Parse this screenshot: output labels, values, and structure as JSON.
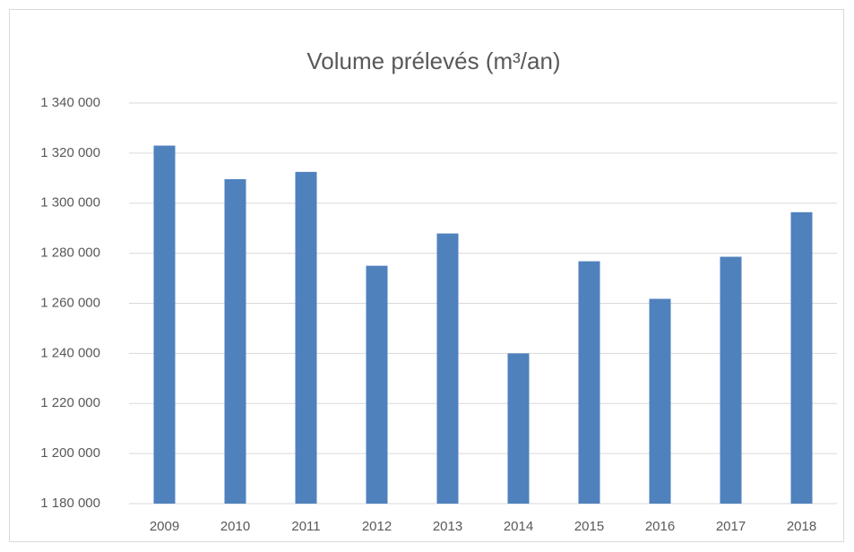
{
  "chart_data": {
    "type": "bar",
    "title": "Volume prélevés (m³/an)",
    "categories": [
      "2009",
      "2010",
      "2011",
      "2012",
      "2013",
      "2014",
      "2015",
      "2016",
      "2017",
      "2018"
    ],
    "values": [
      1323000,
      1309600,
      1312500,
      1275000,
      1287900,
      1240000,
      1276800,
      1261800,
      1278600,
      1296400
    ],
    "color": "#4f81bd",
    "ylim": [
      1180000,
      1340000
    ],
    "yticks": [
      {
        "value": 1180000,
        "label": "1 180 000"
      },
      {
        "value": 1200000,
        "label": "1 200 000"
      },
      {
        "value": 1220000,
        "label": "1 220 000"
      },
      {
        "value": 1240000,
        "label": "1 240 000"
      },
      {
        "value": 1260000,
        "label": "1 260 000"
      },
      {
        "value": 1280000,
        "label": "1 280 000"
      },
      {
        "value": 1300000,
        "label": "1 300 000"
      },
      {
        "value": 1320000,
        "label": "1 320 000"
      },
      {
        "value": 1340000,
        "label": "1 340 000"
      }
    ],
    "grid": true
  }
}
